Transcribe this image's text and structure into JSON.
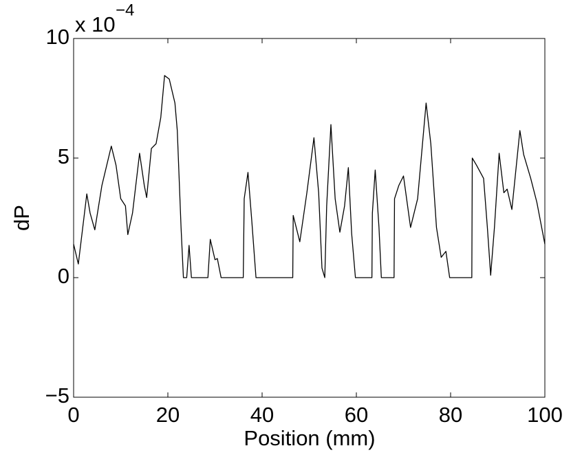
{
  "chart_data": {
    "type": "line",
    "xlabel": "Position (mm)",
    "ylabel": "dP",
    "y_multiplier": "x 10",
    "y_exponent": "−4",
    "x": [
      0,
      1,
      2.8,
      3.5,
      4.5,
      6,
      8,
      9,
      10,
      11,
      11.5,
      12.5,
      14,
      15,
      15.5,
      16.5,
      17.5,
      18.5,
      19.3,
      20.3,
      21.5,
      22,
      22.8,
      23.3,
      24,
      24.5,
      25,
      28.5,
      29,
      30,
      30.5,
      31.3,
      36,
      36.2,
      37,
      37.8,
      38.7,
      46.5,
      46.6,
      48,
      49.5,
      51,
      52,
      52.7,
      53.3,
      53.7,
      54.6,
      55.5,
      56.5,
      57.5,
      58.3,
      59,
      59.8,
      63.3,
      63.4,
      64,
      64.8,
      65.3,
      68,
      68.1,
      69,
      70,
      71.5,
      73,
      74.8,
      75.8,
      77,
      78,
      79,
      79.8,
      84.5,
      84.6,
      85.5,
      87,
      87.8,
      88.5,
      89.3,
      90.3,
      91.3,
      92,
      93,
      94.7,
      95.5,
      97,
      98.3,
      100
    ],
    "series": [
      {
        "name": "dP",
        "color": "#000000",
        "values": [
          1.4,
          0.57,
          3.5,
          2.7,
          2.0,
          3.85,
          5.5,
          4.7,
          3.3,
          3.0,
          1.8,
          2.7,
          5.2,
          3.85,
          3.35,
          5.4,
          5.6,
          6.7,
          8.45,
          8.3,
          7.3,
          6.15,
          2.1,
          0,
          0,
          1.35,
          0,
          0,
          1.6,
          0.75,
          0.8,
          0,
          0,
          3.3,
          4.4,
          2.4,
          0,
          0,
          2.6,
          1.5,
          3.55,
          5.85,
          3.55,
          0.4,
          0,
          3.0,
          6.4,
          3.3,
          1.9,
          3.0,
          4.6,
          1.85,
          0,
          0,
          2.7,
          4.5,
          2.1,
          0,
          0,
          3.3,
          3.85,
          4.25,
          2.1,
          3.3,
          7.3,
          5.6,
          2.1,
          0.85,
          1.1,
          0,
          0,
          5.0,
          4.7,
          4.15,
          2.1,
          0.1,
          2.1,
          5.2,
          3.55,
          3.7,
          2.85,
          6.15,
          5.15,
          4.15,
          3.15,
          1.4
        ]
      }
    ],
    "xlim": [
      0,
      100
    ],
    "xticks": [
      0,
      20,
      40,
      60,
      80,
      100
    ],
    "ylim": [
      -5,
      10
    ],
    "yticks": [
      {
        "value": -5,
        "label": "−5"
      },
      0,
      5,
      10
    ]
  }
}
